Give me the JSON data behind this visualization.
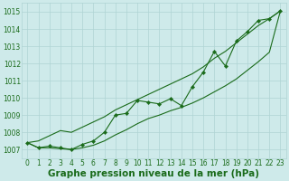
{
  "x": [
    0,
    1,
    2,
    3,
    4,
    5,
    6,
    7,
    8,
    9,
    10,
    11,
    12,
    13,
    14,
    15,
    16,
    17,
    18,
    19,
    20,
    21,
    22,
    23
  ],
  "line_marked": [
    1007.4,
    1007.1,
    1007.2,
    1007.1,
    1007.0,
    1007.3,
    1007.5,
    1008.0,
    1009.0,
    1009.1,
    1009.85,
    1009.75,
    1009.65,
    1009.95,
    1009.55,
    1010.65,
    1011.5,
    1012.7,
    1011.85,
    1013.3,
    1013.85,
    1014.5,
    1014.6,
    1015.05
  ],
  "line_upper": [
    1007.4,
    1007.5,
    1007.8,
    1008.1,
    1008.0,
    1008.3,
    1008.6,
    1008.9,
    1009.3,
    1009.6,
    1009.9,
    1010.2,
    1010.5,
    1010.8,
    1011.1,
    1011.4,
    1011.8,
    1012.3,
    1012.7,
    1013.2,
    1013.7,
    1014.2,
    1014.6,
    1015.05
  ],
  "line_lower": [
    1007.4,
    1007.1,
    1007.1,
    1007.05,
    1007.0,
    1007.1,
    1007.25,
    1007.5,
    1007.85,
    1008.15,
    1008.5,
    1008.8,
    1009.0,
    1009.25,
    1009.45,
    1009.7,
    1010.0,
    1010.35,
    1010.7,
    1011.1,
    1011.6,
    1012.1,
    1012.65,
    1015.05
  ],
  "ylim_min": 1006.5,
  "ylim_max": 1015.5,
  "yticks": [
    1007,
    1008,
    1009,
    1010,
    1011,
    1012,
    1013,
    1014,
    1015
  ],
  "xticks": [
    0,
    1,
    2,
    3,
    4,
    5,
    6,
    7,
    8,
    9,
    10,
    11,
    12,
    13,
    14,
    15,
    16,
    17,
    18,
    19,
    20,
    21,
    22,
    23
  ],
  "xlabel": "Graphe pression niveau de la mer (hPa)",
  "line_color": "#1a6b1a",
  "marker": "D",
  "marker_size": 2.2,
  "bg_color": "#ceeaea",
  "grid_color": "#afd4d4",
  "text_color": "#1a6b1a",
  "xlabel_fontsize": 7.5,
  "tick_fontsize": 5.5,
  "linewidth": 0.8
}
